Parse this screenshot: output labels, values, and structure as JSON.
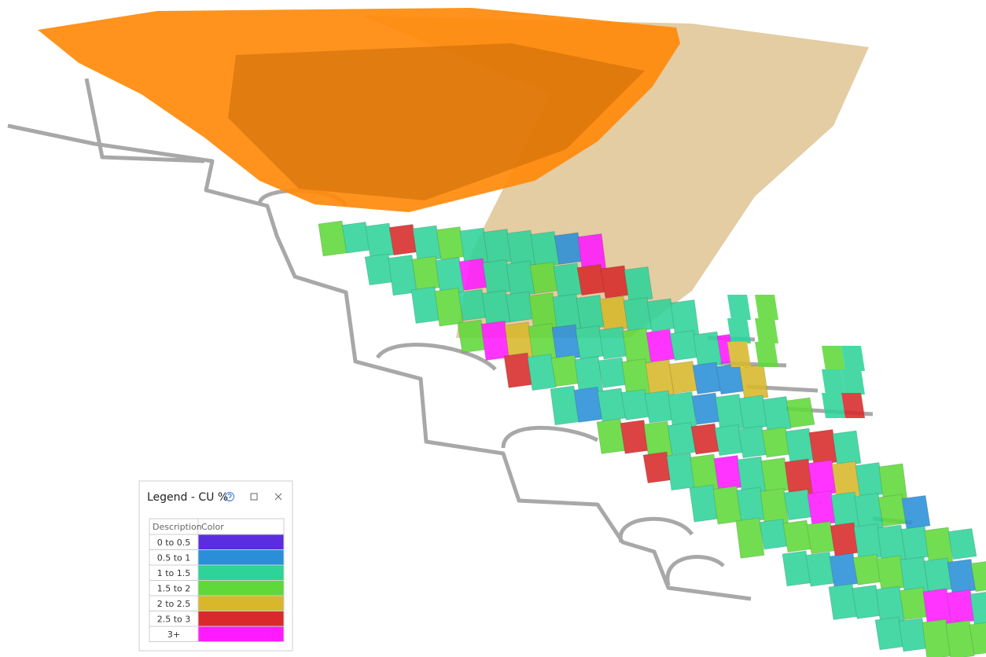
{
  "legend": {
    "title": "Legend - CU %",
    "columns": [
      "Description",
      "Color"
    ],
    "rows": [
      {
        "description": "0 to 0.5",
        "color": "#5a2ee0"
      },
      {
        "description": "0.5 to 1",
        "color": "#2a8fd8"
      },
      {
        "description": "1 to 1.5",
        "color": "#2ed39a"
      },
      {
        "description": "1.5 to 2",
        "color": "#5fd93a"
      },
      {
        "description": "2 to 2.5",
        "color": "#d8b82a"
      },
      {
        "description": "2.5 to 3",
        "color": "#d82a2a"
      },
      {
        "description": "3+",
        "color": "#ff1aff"
      }
    ]
  }
}
